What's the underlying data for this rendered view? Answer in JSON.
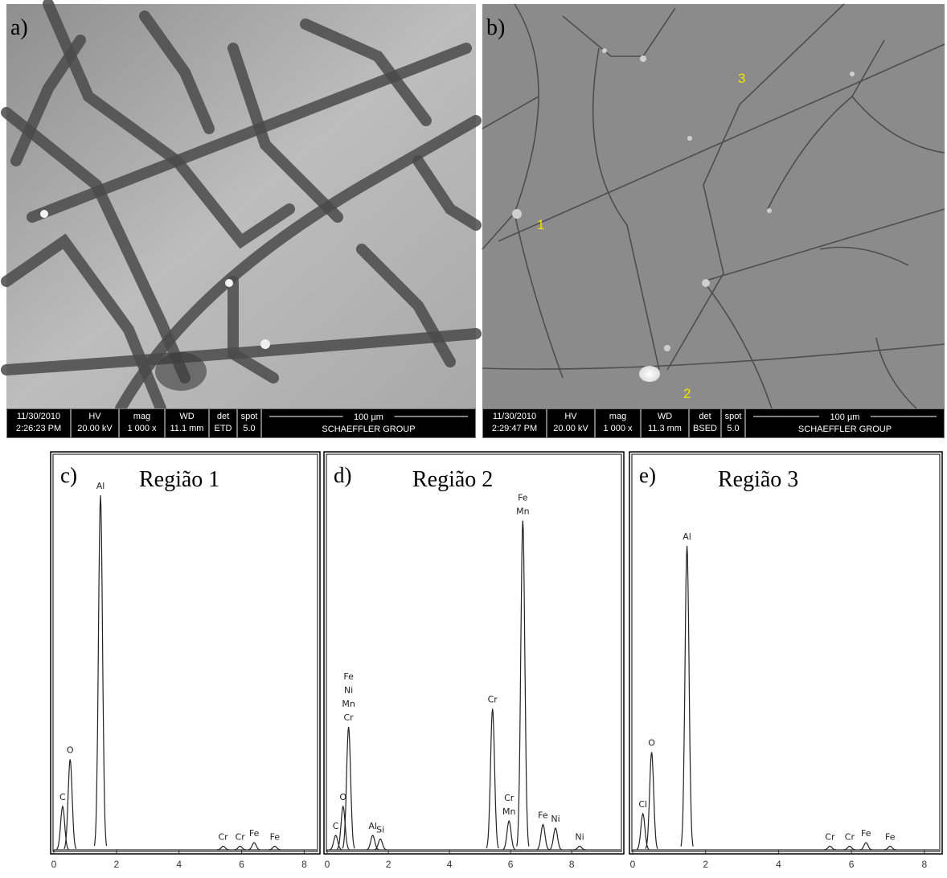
{
  "panels": [
    {
      "label": "a)",
      "info": {
        "columns": [
          [
            "11/30/2010",
            "2:26:23 PM"
          ],
          [
            "HV",
            "20.00 kV"
          ],
          [
            "mag",
            "1 000 x"
          ],
          [
            "WD",
            "11.1 mm"
          ],
          [
            "det",
            "ETD"
          ],
          [
            "spot",
            "5.0"
          ]
        ],
        "scale": "100 µm",
        "footer": "SCHAEFFLER GROUP"
      }
    },
    {
      "label": "b)",
      "markers": [
        "1",
        "2",
        "3"
      ],
      "info": {
        "columns": [
          [
            "11/30/2010",
            "2:29:47 PM"
          ],
          [
            "HV",
            "20.00 kV"
          ],
          [
            "mag",
            "1 000 x"
          ],
          [
            "WD",
            "11.3 mm"
          ],
          [
            "det",
            "BSED"
          ],
          [
            "spot",
            "5.0"
          ]
        ],
        "scale": "100 µm",
        "footer": "SCHAEFFLER GROUP"
      }
    }
  ],
  "spectra": [
    {
      "type": "spectrum",
      "label": "c)",
      "title": "Região 1",
      "xlim": [
        0,
        8.4
      ],
      "ylim": [
        0,
        100
      ],
      "xticks": [
        0,
        2,
        4,
        6,
        8
      ],
      "peaks": [
        {
          "x": 0.28,
          "height": 12,
          "labels": [
            "C"
          ]
        },
        {
          "x": 0.52,
          "height": 25,
          "labels": [
            "O"
          ]
        },
        {
          "x": 1.49,
          "height": 98,
          "labels": [
            "Al"
          ]
        },
        {
          "x": 5.41,
          "height": 1,
          "labels": [
            "Cr"
          ]
        },
        {
          "x": 5.95,
          "height": 1,
          "labels": [
            "Cr"
          ]
        },
        {
          "x": 6.4,
          "height": 2,
          "labels": [
            "Fe"
          ]
        },
        {
          "x": 7.06,
          "height": 1,
          "labels": [
            "Fe"
          ]
        }
      ]
    },
    {
      "type": "spectrum",
      "label": "d)",
      "title": "Região 2",
      "xlim": [
        0,
        9.6
      ],
      "ylim": [
        0,
        100
      ],
      "xticks": [
        0,
        2,
        4,
        6,
        8
      ],
      "peaks": [
        {
          "x": 0.28,
          "height": 4,
          "labels": [
            "C"
          ]
        },
        {
          "x": 0.52,
          "height": 12,
          "labels": [
            "O"
          ]
        },
        {
          "x": 0.7,
          "height": 34,
          "labels": [
            "Fe",
            "Ni",
            "Mn",
            "Cr"
          ]
        },
        {
          "x": 1.49,
          "height": 4,
          "labels": [
            "Al"
          ]
        },
        {
          "x": 1.74,
          "height": 3,
          "labels": [
            "Si"
          ]
        },
        {
          "x": 5.41,
          "height": 39,
          "labels": [
            "Cr"
          ]
        },
        {
          "x": 5.95,
          "height": 8,
          "labels": [
            "Cr",
            "Mn"
          ]
        },
        {
          "x": 6.4,
          "height": 91,
          "labels": [
            "Fe",
            "Mn"
          ]
        },
        {
          "x": 7.06,
          "height": 7,
          "labels": [
            "Fe"
          ]
        },
        {
          "x": 7.47,
          "height": 6,
          "labels": [
            "Ni"
          ]
        },
        {
          "x": 8.26,
          "height": 1,
          "labels": [
            "Ni"
          ]
        }
      ]
    },
    {
      "type": "spectrum",
      "label": "e)",
      "title": "Região 3",
      "xlim": [
        0,
        8.4
      ],
      "ylim": [
        0,
        100
      ],
      "xticks": [
        0,
        2,
        4,
        6,
        8
      ],
      "peaks": [
        {
          "x": 0.28,
          "height": 10,
          "labels": [
            "Cl"
          ]
        },
        {
          "x": 0.52,
          "height": 27,
          "labels": [
            "O"
          ]
        },
        {
          "x": 1.49,
          "height": 84,
          "labels": [
            "Al"
          ]
        },
        {
          "x": 5.41,
          "height": 1,
          "labels": [
            "Cr"
          ]
        },
        {
          "x": 5.95,
          "height": 1,
          "labels": [
            "Cr"
          ]
        },
        {
          "x": 6.4,
          "height": 2,
          "labels": [
            "Fe"
          ]
        },
        {
          "x": 7.06,
          "height": 1,
          "labels": [
            "Fe"
          ]
        }
      ]
    }
  ]
}
